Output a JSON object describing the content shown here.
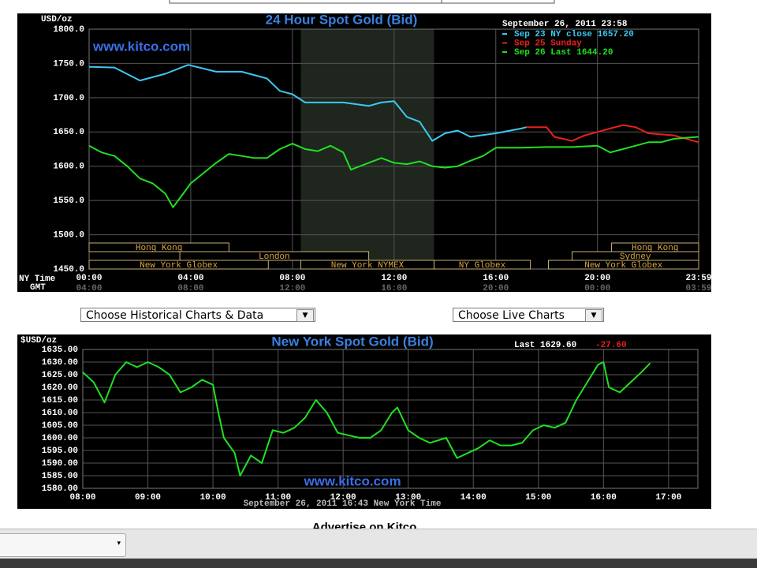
{
  "chart_data": [
    {
      "type": "line",
      "title": "24 Hour Spot Gold (Bid)",
      "subtitle": "September 26, 2011 23:58",
      "watermark": "www.kitco.com",
      "ylabel": "USD/oz",
      "xlabel": "NY Time",
      "x2label": "GMT",
      "xlim": [
        0,
        23.98
      ],
      "ylim": [
        1450,
        1800
      ],
      "xticks": [
        {
          "value": 0,
          "label": "00:00"
        },
        {
          "value": 4,
          "label": "04:00"
        },
        {
          "value": 8,
          "label": "08:00"
        },
        {
          "value": 12,
          "label": "12:00"
        },
        {
          "value": 16,
          "label": "16:00"
        },
        {
          "value": 20,
          "label": "20:00"
        },
        {
          "value": 23.98,
          "label": "23:59"
        }
      ],
      "x2ticks": [
        {
          "value": 0,
          "label": "04:00"
        },
        {
          "value": 4,
          "label": "08:00"
        },
        {
          "value": 8,
          "label": "12:00"
        },
        {
          "value": 12,
          "label": "16:00"
        },
        {
          "value": 16,
          "label": "20:00"
        },
        {
          "value": 20,
          "label": "00:00"
        },
        {
          "value": 23.98,
          "label": "03:59"
        }
      ],
      "yticks": [
        {
          "value": 1450,
          "label": "1450.0"
        },
        {
          "value": 1500,
          "label": "1500.0"
        },
        {
          "value": 1550,
          "label": "1550.0"
        },
        {
          "value": 1600,
          "label": "1600.0"
        },
        {
          "value": 1650,
          "label": "1650.0"
        },
        {
          "value": 1700,
          "label": "1700.0"
        },
        {
          "value": 1750,
          "label": "1750.0"
        },
        {
          "value": 1800,
          "label": "1800.0"
        }
      ],
      "grid": true,
      "highlight": [
        8.33,
        13.57
      ],
      "sessions": [
        [
          {
            "label": "Hong Kong",
            "start": 0,
            "end": 5.5
          },
          {
            "label": "Hong Kong",
            "start": 20.55,
            "end": 23.98
          }
        ],
        [
          {
            "label": "London",
            "start": 3.57,
            "end": 11
          },
          {
            "label": "Sydney",
            "start": 19,
            "end": 23.98
          }
        ],
        [
          {
            "label": "New York Globex",
            "start": 0,
            "end": 7.05
          },
          {
            "label": "New York NYMEX",
            "start": 8.33,
            "end": 13.57
          },
          {
            "label": "NY Globex",
            "start": 13.57,
            "end": 17.36
          },
          {
            "label": "New York Globex",
            "start": 18.07,
            "end": 23.98
          }
        ]
      ],
      "series": [
        {
          "name": "Sep 23 NY close 1657.20",
          "color": "#3cc8f0",
          "x": [
            0,
            1,
            2,
            3,
            3.9,
            5,
            6,
            7,
            7.5,
            8,
            8.5,
            9,
            10,
            11,
            11.5,
            12,
            12.5,
            13,
            13.5,
            14,
            14.5,
            15,
            16,
            17,
            17.2
          ],
          "values": [
            1745,
            1744,
            1725,
            1735,
            1748,
            1738,
            1738,
            1728,
            1710,
            1705,
            1693,
            1693,
            1693,
            1688,
            1693,
            1695,
            1672,
            1665,
            1637,
            1648,
            1652,
            1643,
            1648,
            1655,
            1657
          ]
        },
        {
          "name": "Sep 25 Sunday",
          "color": "#e8201c",
          "x": [
            17.2,
            18,
            18.3,
            19,
            19.5,
            20,
            20.5,
            21,
            21.5,
            22,
            23,
            23.98
          ],
          "values": [
            1657,
            1657,
            1643,
            1637,
            1645,
            1650,
            1655,
            1660,
            1657,
            1648,
            1645,
            1635
          ]
        },
        {
          "name": "Sep 26 Last 1644.20",
          "color": "#20e020",
          "x": [
            0,
            0.5,
            1,
            1.5,
            2,
            2.5,
            3,
            3.3,
            3.7,
            4,
            4.5,
            5,
            5.5,
            6,
            6.5,
            7,
            7.5,
            8,
            8.5,
            9,
            9.5,
            10,
            10.3,
            11,
            11.5,
            12,
            12.5,
            13,
            13.5,
            14,
            14.5,
            15,
            15.5,
            16,
            17,
            18,
            19,
            20,
            20.5,
            21,
            21.5,
            22,
            22.5,
            23,
            23.98
          ],
          "values": [
            1630,
            1620,
            1615,
            1600,
            1582,
            1575,
            1560,
            1540,
            1560,
            1575,
            1590,
            1605,
            1618,
            1615,
            1612,
            1612,
            1625,
            1633,
            1625,
            1622,
            1630,
            1620,
            1595,
            1605,
            1612,
            1605,
            1603,
            1607,
            1600,
            1598,
            1600,
            1608,
            1615,
            1627,
            1627,
            1628,
            1628,
            1630,
            1620,
            1625,
            1630,
            1635,
            1635,
            1640,
            1643
          ]
        }
      ]
    },
    {
      "type": "line",
      "title": "New York Spot Gold (Bid)",
      "last": "Last 1629.60",
      "change": "-27.60",
      "watermark": "www.kitco.com",
      "ylabel": "$USD/oz",
      "footer": "September 26, 2011 16:43 New York Time",
      "xlim": [
        8,
        17.45
      ],
      "ylim": [
        1580,
        1635
      ],
      "xticks": [
        {
          "value": 8,
          "label": "08:00"
        },
        {
          "value": 9,
          "label": "09:00"
        },
        {
          "value": 10,
          "label": "10:00"
        },
        {
          "value": 11,
          "label": "11:00"
        },
        {
          "value": 12,
          "label": "12:00"
        },
        {
          "value": 13,
          "label": "13:00"
        },
        {
          "value": 14,
          "label": "14:00"
        },
        {
          "value": 15,
          "label": "15:00"
        },
        {
          "value": 16,
          "label": "16:00"
        },
        {
          "value": 17,
          "label": "17:00"
        }
      ],
      "yticks": [
        {
          "value": 1580,
          "label": "1580.00"
        },
        {
          "value": 1585,
          "label": "1585.00"
        },
        {
          "value": 1590,
          "label": "1590.00"
        },
        {
          "value": 1595,
          "label": "1595.00"
        },
        {
          "value": 1600,
          "label": "1600.00"
        },
        {
          "value": 1605,
          "label": "1605.00"
        },
        {
          "value": 1610,
          "label": "1610.00"
        },
        {
          "value": 1615,
          "label": "1615.00"
        },
        {
          "value": 1620,
          "label": "1620.00"
        },
        {
          "value": 1625,
          "label": "1625.00"
        },
        {
          "value": 1630,
          "label": "1630.00"
        },
        {
          "value": 1635,
          "label": "1635.00"
        }
      ],
      "grid": true,
      "series": [
        {
          "color": "#20e020",
          "x": [
            8,
            8.167,
            8.333,
            8.5,
            8.667,
            8.833,
            9,
            9.167,
            9.333,
            9.5,
            9.667,
            9.833,
            10,
            10.083,
            10.167,
            10.333,
            10.417,
            10.583,
            10.75,
            10.917,
            11.083,
            11.25,
            11.417,
            11.583,
            11.75,
            11.917,
            12.083,
            12.25,
            12.417,
            12.583,
            12.75,
            12.833,
            13,
            13.167,
            13.333,
            13.583,
            13.75,
            13.917,
            14.083,
            14.25,
            14.417,
            14.583,
            14.75,
            14.917,
            15.083,
            15.25,
            15.417,
            15.583,
            15.75,
            15.917,
            16,
            16.083,
            16.25,
            16.417,
            16.583,
            16.717
          ],
          "values": [
            1626,
            1622,
            1614,
            1625,
            1630,
            1628,
            1630,
            1628,
            1625,
            1618,
            1620,
            1623,
            1621,
            1610,
            1600,
            1594,
            1585,
            1593,
            1590,
            1603,
            1602,
            1604,
            1608,
            1615,
            1610,
            1602,
            1601,
            1600,
            1600,
            1603,
            1610,
            1612,
            1603,
            1600,
            1598,
            1600,
            1592,
            1594,
            1596,
            1599,
            1597,
            1597,
            1598,
            1603,
            1605,
            1604,
            1606,
            1615,
            1622,
            1629,
            1630,
            1620,
            1618,
            1622,
            1626,
            1629.6
          ]
        }
      ]
    }
  ],
  "page": {
    "menus": [
      "Choose Historical Charts & Data",
      "Choose Live Charts"
    ],
    "footer_text": "Advertise on Kitco"
  }
}
